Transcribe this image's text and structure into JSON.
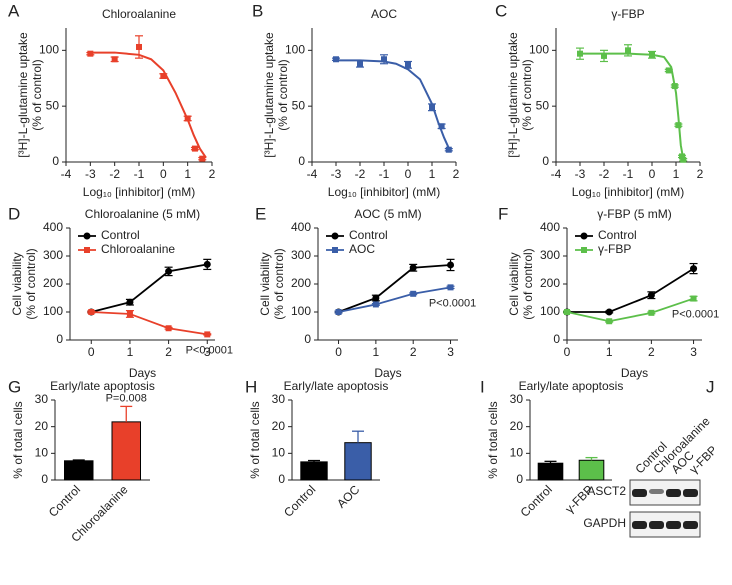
{
  "chart_data": [
    {
      "panel": "A",
      "type": "scatter",
      "title": "Chloroalanine",
      "xlabel": "Log₁₀ [inhibitor] (mM)",
      "ylabel": [
        "[³H]-L-glutamine uptake",
        "(% of control)"
      ],
      "xlim": [
        -4,
        2
      ],
      "xticks": [
        -4,
        -3,
        -2,
        -1,
        0,
        1,
        2
      ],
      "ylim": [
        0,
        120
      ],
      "yticks": [
        0,
        50,
        100
      ],
      "series": [
        {
          "color": "#e8402a",
          "x": [
            -3,
            -2,
            -1,
            0,
            1,
            1.3,
            1.6
          ],
          "values": [
            97,
            92,
            103,
            77,
            39,
            12,
            3
          ],
          "errors": [
            1,
            2,
            10,
            2,
            2,
            1,
            1
          ],
          "fit_x": [
            -3,
            -2,
            -1,
            -0.5,
            0,
            0.5,
            1,
            1.25,
            1.5,
            1.75
          ],
          "fit_values": [
            98,
            98,
            96,
            92,
            82,
            62,
            38,
            24,
            12,
            4
          ]
        }
      ]
    },
    {
      "panel": "B",
      "type": "scatter",
      "title": "AOC",
      "xlabel": "Log₁₀ [inhibitor] (mM)",
      "ylabel": [
        "[³H]-L-glutamine uptake",
        "(% of control)"
      ],
      "xlim": [
        -4,
        2
      ],
      "xticks": [
        -4,
        -3,
        -2,
        -1,
        0,
        1,
        2
      ],
      "ylim": [
        0,
        120
      ],
      "yticks": [
        0,
        50,
        100
      ],
      "series": [
        {
          "color": "#3a5ea8",
          "x": [
            -3,
            -2,
            -1,
            0,
            1,
            1.4,
            1.7
          ],
          "values": [
            92,
            88,
            92,
            87,
            49,
            32,
            11
          ],
          "errors": [
            1,
            3,
            4,
            3,
            3,
            2,
            1
          ],
          "fit_x": [
            -3,
            -2,
            -1,
            -0.5,
            0,
            0.5,
            1,
            1.25,
            1.5,
            1.75
          ],
          "fit_values": [
            91,
            91,
            90,
            88,
            83,
            74,
            52,
            36,
            22,
            10
          ]
        }
      ]
    },
    {
      "panel": "C",
      "type": "scatter",
      "title": "γ-FBP",
      "xlabel": "Log₁₀ [inhibitor] (mM)",
      "ylabel": [
        "[³H]-L-glutamine uptake",
        "(% of control)"
      ],
      "xlim": [
        -4,
        2
      ],
      "xticks": [
        -4,
        -3,
        -2,
        -1,
        0,
        1,
        2
      ],
      "ylim": [
        0,
        120
      ],
      "yticks": [
        0,
        50,
        100
      ],
      "series": [
        {
          "color": "#5cbf4a",
          "x": [
            -3,
            -2,
            -1,
            0,
            0.7,
            0.95,
            1.1,
            1.25,
            1.3
          ],
          "values": [
            97,
            95,
            100,
            96,
            82,
            68,
            33,
            5,
            2
          ],
          "errors": [
            5,
            5,
            5,
            3,
            1,
            1,
            1,
            1,
            1
          ],
          "fit_x": [
            -3,
            -2,
            -1,
            0,
            0.5,
            0.8,
            1,
            1.1,
            1.2,
            1.3
          ],
          "fit_values": [
            97,
            97,
            97,
            96,
            94,
            85,
            62,
            40,
            15,
            3
          ]
        }
      ]
    },
    {
      "panel": "D",
      "type": "line",
      "title": "Chloroalanine (5 mM)",
      "xlabel": "Days",
      "ylabel": [
        "Cell viability",
        "(% of control)"
      ],
      "annotation": "P<0.0001",
      "x": [
        0,
        1,
        2,
        3
      ],
      "xlim": [
        -0.55,
        3.2
      ],
      "xticks": [
        0,
        1,
        2,
        3
      ],
      "ylim": [
        0,
        400
      ],
      "yticks": [
        0,
        100,
        200,
        300,
        400
      ],
      "series": [
        {
          "name": "Control",
          "color": "#000000",
          "marker": "circle",
          "values": [
            100,
            135,
            245,
            270
          ],
          "errors": [
            3,
            10,
            15,
            18
          ]
        },
        {
          "name": "Chloroalanine",
          "color": "#e8402a",
          "marker": "square",
          "values": [
            100,
            93,
            42,
            20
          ],
          "errors": [
            3,
            12,
            3,
            2
          ]
        }
      ]
    },
    {
      "panel": "E",
      "type": "line",
      "title": "AOC (5 mM)",
      "xlabel": "Days",
      "ylabel": [
        "Cell viability",
        "(% of control)"
      ],
      "annotation": "P<0.0001",
      "x": [
        0,
        1,
        2,
        3
      ],
      "xlim": [
        -0.55,
        3.2
      ],
      "xticks": [
        0,
        1,
        2,
        3
      ],
      "ylim": [
        0,
        400
      ],
      "yticks": [
        0,
        100,
        200,
        300,
        400
      ],
      "series": [
        {
          "name": "Control",
          "color": "#000000",
          "marker": "circle",
          "values": [
            100,
            150,
            258,
            268
          ],
          "errors": [
            3,
            10,
            12,
            20
          ]
        },
        {
          "name": "AOC",
          "color": "#3a5ea8",
          "marker": "square",
          "values": [
            100,
            127,
            165,
            188
          ],
          "errors": [
            3,
            3,
            3,
            4
          ]
        }
      ]
    },
    {
      "panel": "F",
      "type": "line",
      "title": "γ-FBP (5 mM)",
      "xlabel": "Days",
      "ylabel": [
        "Cell viability",
        "(% of control)"
      ],
      "annotation": "P<0.0001",
      "x": [
        0,
        1,
        2,
        3
      ],
      "xlim": [
        0,
        3.2
      ],
      "xticks": [
        0,
        1,
        2,
        3
      ],
      "ylim": [
        0,
        400
      ],
      "yticks": [
        0,
        100,
        200,
        300,
        400
      ],
      "series": [
        {
          "name": "Control",
          "color": "#000000",
          "marker": "circle",
          "values": [
            100,
            100,
            160,
            255
          ],
          "errors": [
            3,
            3,
            12,
            18
          ]
        },
        {
          "name": "γ-FBP",
          "color": "#5cbf4a",
          "marker": "square",
          "values": [
            100,
            67,
            97,
            148
          ],
          "errors": [
            3,
            3,
            3,
            8
          ]
        }
      ]
    },
    {
      "panel": "G",
      "type": "bar",
      "title": "Early/late apoptosis",
      "ylabel": [
        "% of total cells"
      ],
      "annotation": "P=0.008",
      "categories": [
        "Control",
        "Chloroalanine"
      ],
      "values": [
        7.2,
        21.8
      ],
      "errors": [
        0.3,
        5.8
      ],
      "colors": [
        "#000000",
        "#e8402a"
      ],
      "ylim": [
        0,
        30
      ],
      "yticks": [
        0,
        10,
        20,
        30
      ]
    },
    {
      "panel": "H",
      "type": "bar",
      "title": "Early/late apoptosis",
      "ylabel": [
        "% of total cells"
      ],
      "categories": [
        "Control",
        "AOC"
      ],
      "values": [
        6.8,
        14
      ],
      "errors": [
        0.5,
        4.3
      ],
      "colors": [
        "#000000",
        "#3a5ea8"
      ],
      "ylim": [
        0,
        30
      ],
      "yticks": [
        0,
        10,
        20,
        30
      ]
    },
    {
      "panel": "I",
      "type": "bar",
      "title": "Early/late apoptosis",
      "ylabel": [
        "% of total cells"
      ],
      "categories": [
        "Control",
        "γ-FBP"
      ],
      "values": [
        6.3,
        7.4
      ],
      "errors": [
        0.7,
        1
      ],
      "colors": [
        "#000000",
        "#5cbf4a"
      ],
      "ylim": [
        0,
        30
      ],
      "yticks": [
        0,
        10,
        20,
        30
      ]
    },
    {
      "panel": "J",
      "type": "blot",
      "lanes": [
        "Control",
        "Chloroalanine",
        "AOC",
        "γ-FBP"
      ],
      "rows": [
        "ASCT2",
        "GAPDH"
      ]
    }
  ]
}
